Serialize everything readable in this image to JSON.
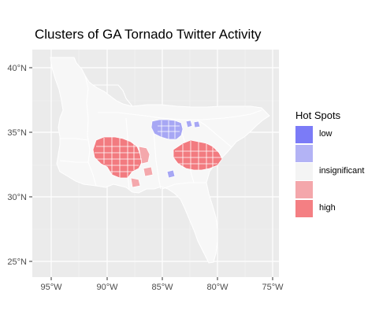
{
  "title": "Clusters of GA Tornado Twitter Activity",
  "axes": {
    "x_ticks": [
      "95°W",
      "90°W",
      "85°W",
      "80°W",
      "75°W"
    ],
    "y_ticks": [
      "40°N",
      "35°N",
      "30°N",
      "25°N"
    ]
  },
  "legend": {
    "title": "Hot Spots",
    "items": [
      {
        "label": "low",
        "color": "#7b7bf7"
      },
      {
        "label": "",
        "color": "#b3b3f5"
      },
      {
        "label": "insignificant",
        "color": "#f4f4f4"
      },
      {
        "label": "",
        "color": "#f4a7ab"
      },
      {
        "label": "high",
        "color": "#f47f83"
      }
    ]
  },
  "colors": {
    "panel": "#ebebeb",
    "gridline": "#ffffff",
    "land": "#f7f7f7",
    "hot": "#f27b80",
    "hot_light": "#f4a8ac",
    "cold": "#9a9af2"
  }
}
